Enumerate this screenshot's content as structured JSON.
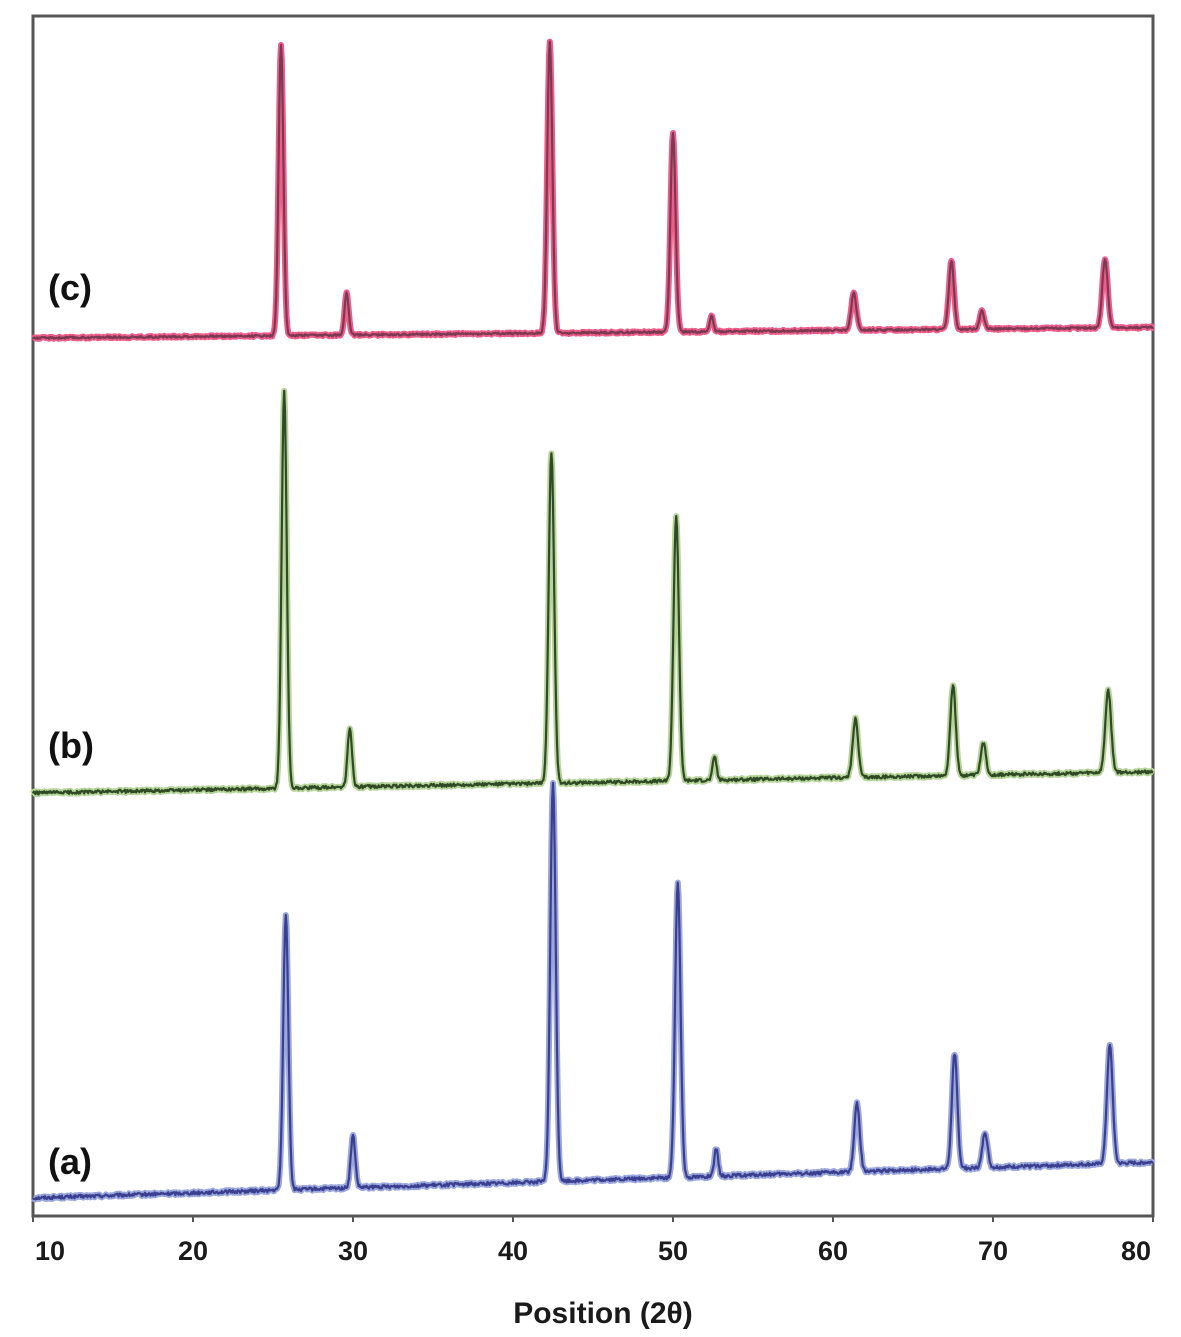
{
  "chart_data": {
    "type": "line",
    "title": "",
    "xlabel": "Position (2θ)",
    "ylabel": "",
    "xlim": [
      10,
      80
    ],
    "xticks": [
      10,
      20,
      30,
      40,
      50,
      60,
      70,
      80
    ],
    "grid": false,
    "legend": "none",
    "series": [
      {
        "name": "(a)",
        "color": "#3a3f8f",
        "peak_color": "#9aa6dc",
        "baseline_start": 0.0,
        "baseline_end": 0.13,
        "noise": 0.006,
        "peaks": [
          {
            "x": 25.8,
            "h": 1.0,
            "w": 0.16
          },
          {
            "x": 30.0,
            "h": 0.19,
            "w": 0.14
          },
          {
            "x": 42.5,
            "h": 1.45,
            "w": 0.17
          },
          {
            "x": 50.3,
            "h": 1.07,
            "w": 0.17
          },
          {
            "x": 52.7,
            "h": 0.1,
            "w": 0.12
          },
          {
            "x": 61.5,
            "h": 0.25,
            "w": 0.17
          },
          {
            "x": 67.6,
            "h": 0.42,
            "w": 0.17
          },
          {
            "x": 69.5,
            "h": 0.13,
            "w": 0.16
          },
          {
            "x": 77.3,
            "h": 0.43,
            "w": 0.18
          }
        ]
      },
      {
        "name": "(b)",
        "color": "#2f4a24",
        "peak_color": "#b6d49a",
        "baseline_start": 0.0,
        "baseline_end": 0.08,
        "noise": 0.006,
        "peaks": [
          {
            "x": 25.7,
            "h": 1.5,
            "w": 0.16
          },
          {
            "x": 29.8,
            "h": 0.22,
            "w": 0.14
          },
          {
            "x": 42.4,
            "h": 1.25,
            "w": 0.17
          },
          {
            "x": 50.2,
            "h": 1.0,
            "w": 0.17
          },
          {
            "x": 52.6,
            "h": 0.09,
            "w": 0.12
          },
          {
            "x": 61.4,
            "h": 0.22,
            "w": 0.17
          },
          {
            "x": 67.5,
            "h": 0.34,
            "w": 0.17
          },
          {
            "x": 69.4,
            "h": 0.12,
            "w": 0.16
          },
          {
            "x": 77.2,
            "h": 0.31,
            "w": 0.18
          }
        ]
      },
      {
        "name": "(c)",
        "color": "#7a3a52",
        "peak_color": "#ef5c8a",
        "baseline_start": 0.0,
        "baseline_end": 0.04,
        "noise": 0.004,
        "peaks": [
          {
            "x": 25.5,
            "h": 1.1,
            "w": 0.15
          },
          {
            "x": 29.6,
            "h": 0.16,
            "w": 0.13
          },
          {
            "x": 42.3,
            "h": 1.1,
            "w": 0.16
          },
          {
            "x": 50.0,
            "h": 0.75,
            "w": 0.16
          },
          {
            "x": 52.4,
            "h": 0.06,
            "w": 0.11
          },
          {
            "x": 61.3,
            "h": 0.14,
            "w": 0.16
          },
          {
            "x": 67.4,
            "h": 0.26,
            "w": 0.16
          },
          {
            "x": 69.3,
            "h": 0.07,
            "w": 0.14
          },
          {
            "x": 77.0,
            "h": 0.26,
            "w": 0.17
          }
        ]
      }
    ]
  }
}
